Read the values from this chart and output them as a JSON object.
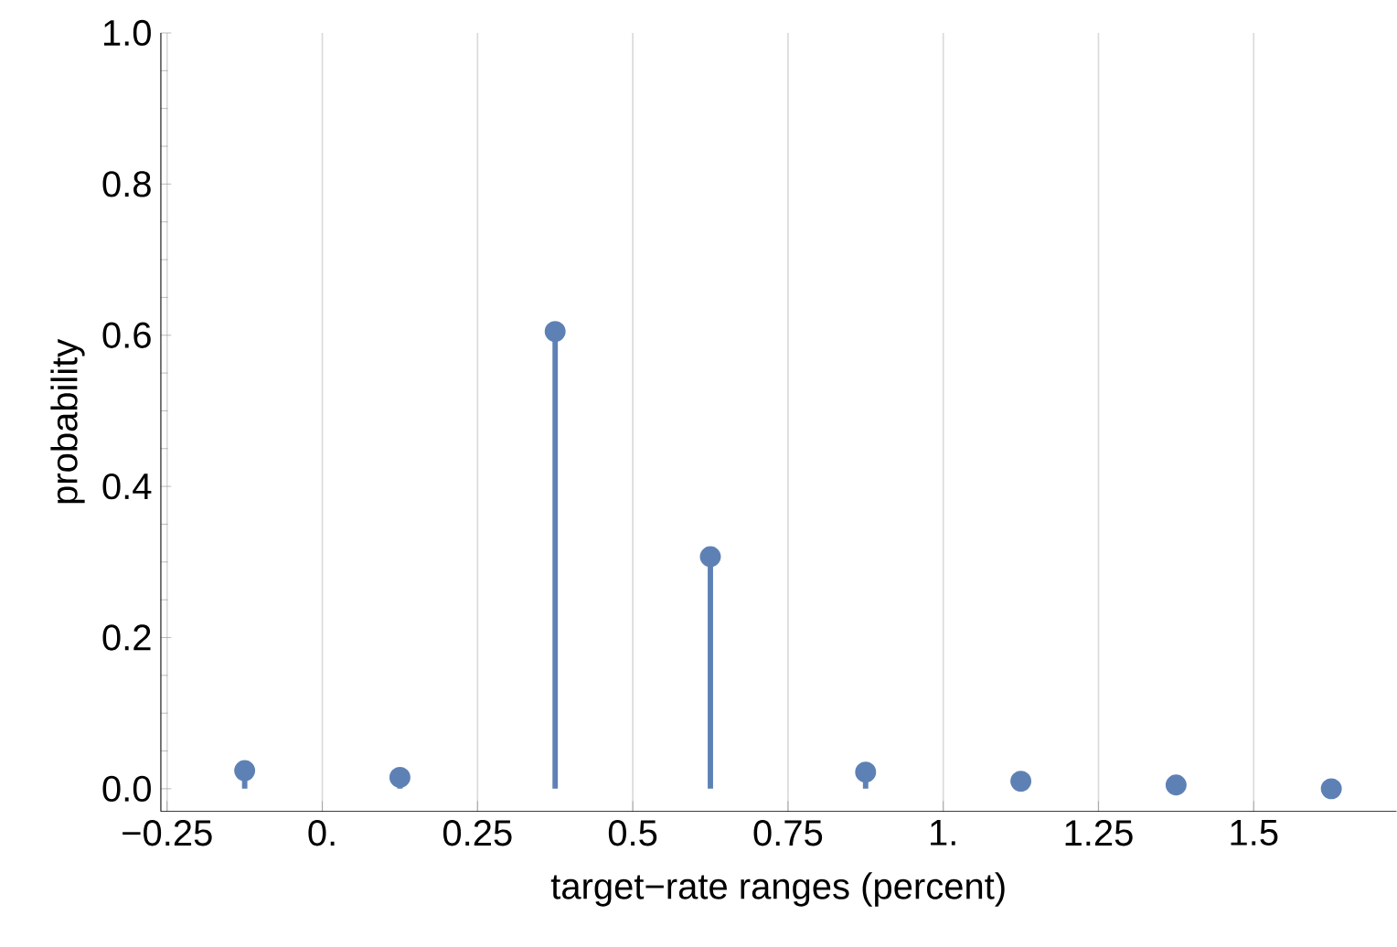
{
  "chart_data": {
    "type": "lollipop",
    "xlabel": "target−rate ranges (percent)",
    "ylabel": "probability",
    "x": [
      -0.125,
      0.125,
      0.375,
      0.625,
      0.875,
      1.125,
      1.375,
      1.625
    ],
    "values": [
      0.024,
      0.015,
      0.605,
      0.307,
      0.022,
      0.01,
      0.005,
      0.0
    ],
    "color": "#5e81b5",
    "marker": "circle",
    "grid": "x",
    "xlim": [
      -0.26,
      1.73
    ],
    "ylim": [
      -0.03,
      1.0
    ],
    "xticks": [
      {
        "value": -0.25,
        "label": "−0.25"
      },
      {
        "value": 0,
        "label": "0."
      },
      0.25,
      0.5,
      0.75,
      {
        "value": 1,
        "label": "1."
      },
      1.25,
      1.5
    ],
    "yticks": [
      {
        "value": 0,
        "label": "0.0"
      },
      0.2,
      0.4,
      0.6,
      0.8,
      {
        "value": 1,
        "label": "1.0"
      }
    ]
  }
}
